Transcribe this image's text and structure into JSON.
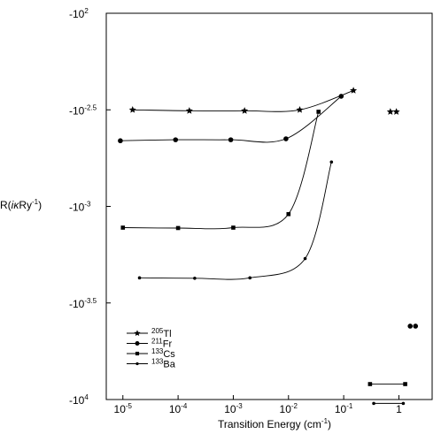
{
  "chart_data": {
    "type": "scatter",
    "xlabel": "Transition Energy (cm",
    "xlabel_sup": "-1",
    "xlabel_end": ")",
    "ylabel": "R(",
    "ylabel_italic": "iκ",
    "ylabel_mid": "Ry",
    "ylabel_sup": "-1",
    "ylabel_end": ")",
    "x_scale": "log",
    "y_scale": "log-negative",
    "xlim": [
      5e-06,
      4
    ],
    "ylim_exponent": [
      2,
      4
    ],
    "x_ticks": [
      {
        "value": 1e-05,
        "base": "10",
        "exp": "-5"
      },
      {
        "value": 0.0001,
        "base": "10",
        "exp": "-4"
      },
      {
        "value": 0.001,
        "base": "10",
        "exp": "-3"
      },
      {
        "value": 0.01,
        "base": "10",
        "exp": "-2"
      },
      {
        "value": 0.1,
        "base": "10",
        "exp": "-1"
      },
      {
        "value": 1,
        "base": "1",
        "exp": ""
      }
    ],
    "y_ticks": [
      {
        "exp_value": 2,
        "base": "-10",
        "exp": "2"
      },
      {
        "exp_value": 2.5,
        "base": "-10",
        "exp": "-2.5"
      },
      {
        "exp_value": 3,
        "base": "-10",
        "exp": "-3"
      },
      {
        "exp_value": 3.5,
        "base": "-10",
        "exp": "-3.5"
      },
      {
        "exp_value": 4,
        "base": "-10",
        "exp": "4"
      }
    ],
    "legend_placement": "lower-left",
    "grid": false,
    "series": [
      {
        "mass": "205",
        "element": "Tl",
        "marker": "star",
        "points": [
          [
            1.5e-05,
            2.5
          ],
          [
            0.00016,
            2.505
          ],
          [
            0.0016,
            2.505
          ],
          [
            0.016,
            2.5
          ],
          [
            0.15,
            2.4
          ]
        ],
        "extra_points": [
          [
            0.7,
            2.51
          ],
          [
            0.9,
            2.51
          ]
        ]
      },
      {
        "mass": "211",
        "element": "Fr",
        "marker": "circle",
        "points": [
          [
            9e-06,
            2.66
          ],
          [
            9e-05,
            2.655
          ],
          [
            0.0009,
            2.655
          ],
          [
            0.009,
            2.65
          ],
          [
            0.09,
            2.43
          ]
        ],
        "extra_points": [
          [
            1.6,
            3.62
          ],
          [
            2.0,
            3.62
          ]
        ]
      },
      {
        "mass": "133",
        "element": "Cs",
        "marker": "square",
        "points": [
          [
            1e-05,
            3.11
          ],
          [
            0.0001,
            3.112
          ],
          [
            0.001,
            3.11
          ],
          [
            0.01,
            3.04
          ],
          [
            0.035,
            2.51
          ]
        ],
        "extra_points": [
          [
            0.3,
            3.92
          ],
          [
            1.3,
            3.92
          ]
        ]
      },
      {
        "mass": "133",
        "element": "Ba",
        "marker": "dot",
        "points": [
          [
            2e-05,
            3.37
          ],
          [
            0.0002,
            3.372
          ],
          [
            0.002,
            3.37
          ],
          [
            0.02,
            3.27
          ],
          [
            0.06,
            2.77
          ]
        ],
        "extra_points": [
          [
            0.35,
            4.02
          ],
          [
            1.2,
            4.02
          ]
        ]
      }
    ]
  }
}
